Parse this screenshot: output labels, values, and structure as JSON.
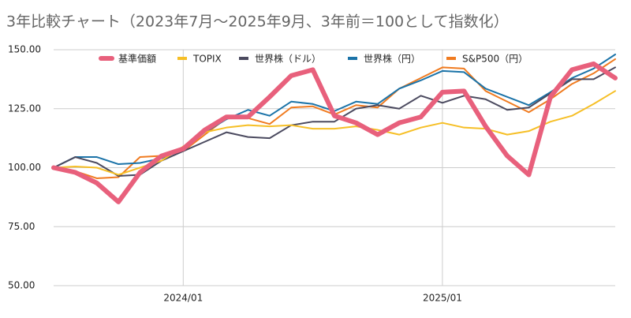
{
  "chart_data": {
    "type": "line",
    "title": "3年比較チャート（2023年7月～2025年9月、3年前＝100として指数化）",
    "categories": [
      null,
      null,
      null,
      null,
      null,
      null,
      "2024/01",
      null,
      null,
      null,
      null,
      null,
      null,
      null,
      null,
      null,
      null,
      null,
      "2025/01",
      null,
      null,
      null,
      null,
      null,
      null,
      null,
      null
    ],
    "series": [
      {
        "name": "基準価額",
        "color": "#e8607c",
        "values": [
          100,
          98,
          93.5,
          85.5,
          98,
          105,
          108,
          116,
          121.5,
          121.5,
          130,
          139,
          141.5,
          122,
          119,
          114,
          119,
          121.5,
          132,
          132.5,
          117.5,
          105,
          97,
          130,
          141.5,
          144,
          138
        ]
      },
      {
        "name": "TOPIX",
        "color": "#f6bf26",
        "values": [
          100,
          100.5,
          100,
          97,
          100,
          103,
          109,
          115,
          117,
          118,
          117.5,
          118,
          116.5,
          116.5,
          117.5,
          116,
          114,
          117,
          119,
          117,
          116.5,
          114,
          115.5,
          119.5,
          122,
          127,
          132.5
        ]
      },
      {
        "name": "世界株（ドル）",
        "color": "#4b4a5f",
        "values": [
          100,
          104.5,
          102,
          96.5,
          97,
          103,
          107,
          111,
          115,
          113,
          112.5,
          118,
          119.5,
          119.5,
          125,
          126.5,
          125,
          130.5,
          127.5,
          130.5,
          129,
          124.5,
          125.5,
          131.5,
          137.5,
          137.5,
          142.5
        ]
      },
      {
        "name": "世界株（円）",
        "color": "#1b73a8",
        "values": [
          100,
          104.5,
          104.5,
          101.5,
          102,
          104,
          108,
          115,
          120.5,
          124.5,
          122,
          128,
          127,
          124,
          128,
          127,
          133.5,
          137,
          141,
          140.5,
          133.5,
          130,
          126.5,
          132,
          138,
          142,
          148
        ]
      },
      {
        "name": "S&P500（円）",
        "color": "#f07b20",
        "values": [
          100,
          98.5,
          95.5,
          96,
          104.5,
          105,
          107,
          114,
          121,
          121,
          118.5,
          125.5,
          126,
          122.5,
          126.5,
          125.5,
          133.5,
          138,
          142.5,
          142,
          132.5,
          128,
          123.5,
          129,
          135.5,
          140,
          146
        ]
      }
    ],
    "ylim": [
      50,
      150
    ],
    "yticks": [
      {
        "value": 50,
        "label": "50.00"
      },
      {
        "value": 75,
        "label": "75.00"
      },
      {
        "value": 100,
        "label": "100.00"
      },
      {
        "value": 125,
        "label": "125.00"
      },
      {
        "value": 150,
        "label": "150.00"
      }
    ],
    "grid": true,
    "legend": "top"
  }
}
